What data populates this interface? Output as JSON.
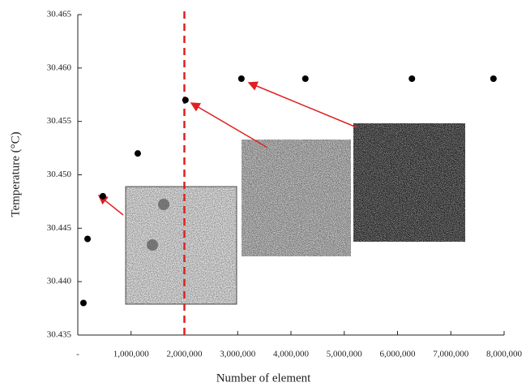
{
  "chart_data": {
    "type": "scatter",
    "x_label": "Number of element",
    "y_label": "Temperature (°C)",
    "x": [
      106000,
      183000,
      470000,
      1125000,
      2020000,
      3070000,
      4270000,
      6270000,
      7800000
    ],
    "values": [
      30.438,
      30.444,
      30.448,
      30.452,
      30.457,
      30.459,
      30.459,
      30.459,
      30.459
    ],
    "color": "#000000",
    "xlim": [
      0,
      8000000
    ],
    "ylim": [
      30.435,
      30.465
    ],
    "xticks": [
      {
        "value": 0,
        "label": "-"
      },
      {
        "value": 1000000,
        "label": "1,000,000"
      },
      {
        "value": 2000000,
        "label": "2,000,000"
      },
      {
        "value": 3000000,
        "label": "3,000,000"
      },
      {
        "value": 4000000,
        "label": "4,000,000"
      },
      {
        "value": 5000000,
        "label": "5,000,000"
      },
      {
        "value": 6000000,
        "label": "6,000,000"
      },
      {
        "value": 7000000,
        "label": "7,000,000"
      },
      {
        "value": 8000000,
        "label": "8,000,000"
      }
    ],
    "yticks": [
      30.435,
      {
        "value": 30.44,
        "label": "30.440"
      },
      30.445,
      {
        "value": 30.45,
        "label": "30.450"
      },
      30.455,
      {
        "value": 30.46,
        "label": "30.460"
      },
      30.465
    ],
    "reference_line": {
      "x": 2000000,
      "color": "#e02020"
    },
    "grid": false
  }
}
